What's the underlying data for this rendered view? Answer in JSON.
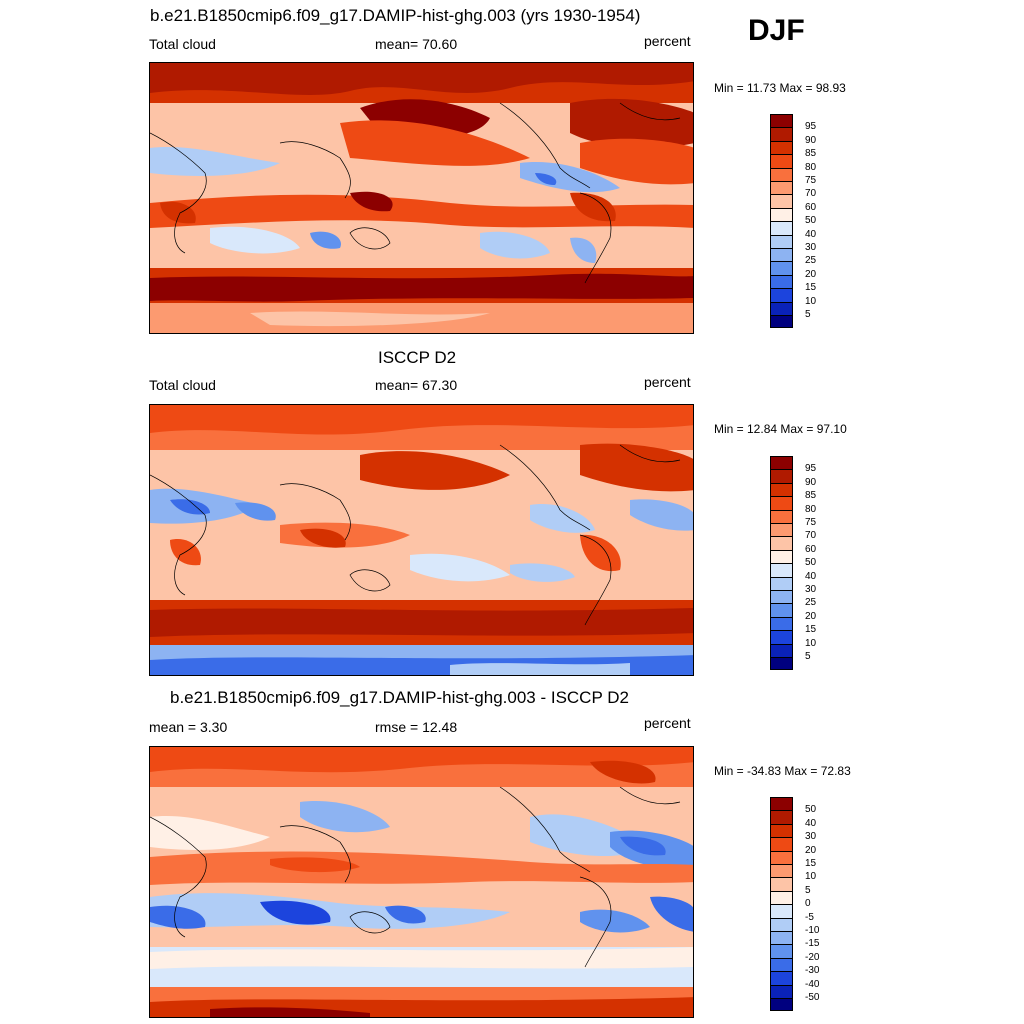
{
  "season": "DJF",
  "units": "percent",
  "panels": [
    {
      "id": "model",
      "title": "b.e21.B1850cmip6.f09_g17.DAMIP-hist-ghg.003 (yrs 1930-1954)",
      "left_label": "Total cloud",
      "center_label": "mean=  70.60",
      "right_label": "percent",
      "min_max": "Min =  11.73 Max =  98.93",
      "colorbar_labels": [
        "95",
        "90",
        "85",
        "80",
        "75",
        "70",
        "60",
        "50",
        "40",
        "30",
        "25",
        "20",
        "15",
        "10",
        "5"
      ],
      "colorbar_colors": [
        "#8c0000",
        "#b01a00",
        "#d43100",
        "#ee4a14",
        "#f9703d",
        "#fc9a70",
        "#fdc4a7",
        "#fff0e6",
        "#d9e8fb",
        "#b0cdf6",
        "#8db3f2",
        "#6092ee",
        "#3a6ce8",
        "#1c44dd",
        "#0a22b8",
        "#00007f"
      ]
    },
    {
      "id": "obs",
      "title": "ISCCP D2",
      "left_label": "Total cloud",
      "center_label": "mean=  67.30",
      "right_label": "percent",
      "min_max": "Min =  12.84 Max =  97.10",
      "colorbar_labels": [
        "95",
        "90",
        "85",
        "80",
        "75",
        "70",
        "60",
        "50",
        "40",
        "30",
        "25",
        "20",
        "15",
        "10",
        "5"
      ],
      "colorbar_colors": [
        "#8c0000",
        "#b01a00",
        "#d43100",
        "#ee4a14",
        "#f9703d",
        "#fc9a70",
        "#fdc4a7",
        "#fff0e6",
        "#d9e8fb",
        "#b0cdf6",
        "#8db3f2",
        "#6092ee",
        "#3a6ce8",
        "#1c44dd",
        "#0a22b8",
        "#00007f"
      ]
    },
    {
      "id": "diff",
      "title": "b.e21.B1850cmip6.f09_g17.DAMIP-hist-ghg.003 - ISCCP D2",
      "left_label": "mean =   3.30",
      "center_label": "rmse =  12.48",
      "right_label": "percent",
      "min_max": "Min = -34.83 Max =  72.83",
      "colorbar_labels": [
        "50",
        "40",
        "30",
        "20",
        "15",
        "10",
        "5",
        "0",
        "-5",
        "-10",
        "-15",
        "-20",
        "-30",
        "-40",
        "-50"
      ],
      "colorbar_colors": [
        "#8c0000",
        "#b01a00",
        "#d43100",
        "#ee4a14",
        "#f9703d",
        "#fc9a70",
        "#fdc4a7",
        "#fff0e6",
        "#d9e8fb",
        "#b0cdf6",
        "#8db3f2",
        "#6092ee",
        "#3a6ce8",
        "#1c44dd",
        "#0a22b8",
        "#00007f"
      ]
    }
  ]
}
